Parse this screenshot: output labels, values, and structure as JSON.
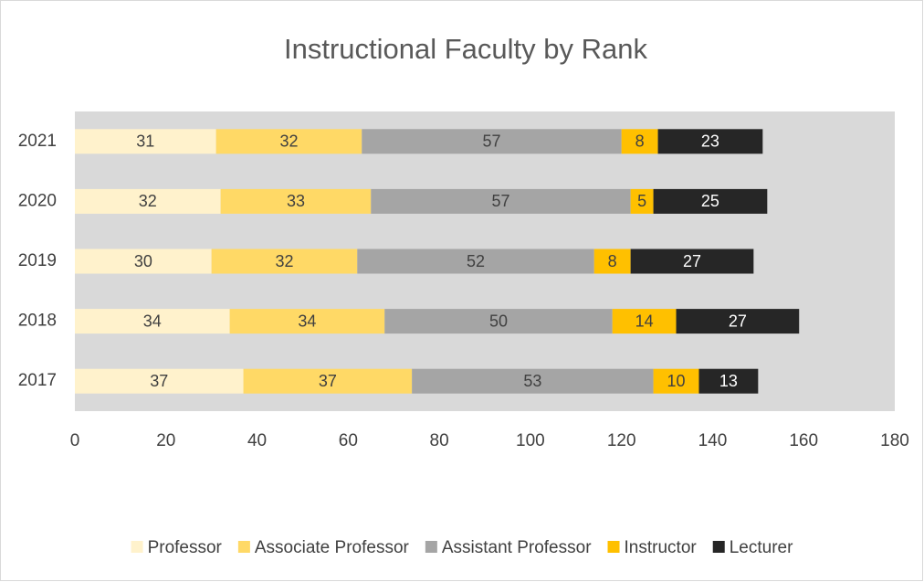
{
  "chart_data": {
    "type": "bar",
    "orientation": "horizontal",
    "stacked": true,
    "title": "Instructional Faculty by Rank",
    "categories": [
      "2021",
      "2020",
      "2019",
      "2018",
      "2017"
    ],
    "series": [
      {
        "name": "Professor",
        "color": "#fff2cc",
        "values": [
          31,
          32,
          30,
          34,
          37
        ]
      },
      {
        "name": "Associate Professor",
        "color": "#ffd966",
        "values": [
          32,
          33,
          32,
          34,
          37
        ]
      },
      {
        "name": "Assistant Professor",
        "color": "#a5a5a5",
        "values": [
          57,
          57,
          52,
          50,
          53
        ]
      },
      {
        "name": "Instructor",
        "color": "#ffc000",
        "values": [
          8,
          5,
          8,
          14,
          10
        ]
      },
      {
        "name": "Lecturer",
        "color": "#262626",
        "values": [
          23,
          25,
          27,
          27,
          13
        ]
      }
    ],
    "xlim": [
      0,
      180
    ],
    "xticks": [
      0,
      20,
      40,
      60,
      80,
      100,
      120,
      140,
      160,
      180
    ],
    "legend": "bottom"
  }
}
